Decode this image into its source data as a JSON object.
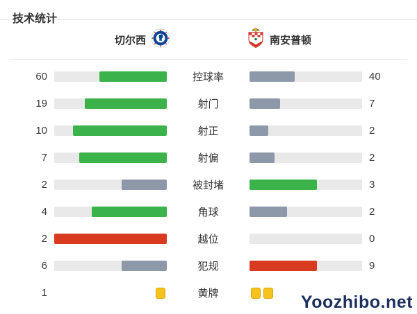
{
  "page": {
    "title": "技术统计",
    "watermark": "Yoozhibo.net"
  },
  "teams": {
    "home": {
      "name": "切尔西"
    },
    "away": {
      "name": "南安普顿"
    }
  },
  "colors": {
    "green": "#3cb24a",
    "slate": "#8d98a8",
    "red": "#d93b20",
    "track": "#e9e9e9",
    "yellow": "#f6c31d"
  },
  "chart_data": {
    "type": "bar",
    "title": "技术统计",
    "categories": [
      "控球率",
      "射门",
      "射正",
      "射偏",
      "被封堵",
      "角球",
      "越位",
      "犯规",
      "黄牌"
    ],
    "series": [
      {
        "name": "切尔西",
        "values": [
          60,
          19,
          10,
          7,
          2,
          4,
          2,
          6,
          1
        ]
      },
      {
        "name": "南安普顿",
        "values": [
          40,
          7,
          2,
          2,
          3,
          2,
          0,
          9,
          2
        ]
      }
    ],
    "layout": "mirrored horizontal bars, labels centered, fills proportional to value share"
  },
  "stats": [
    {
      "type": "bar",
      "label": "控球率",
      "home_value": "60",
      "away_value": "40",
      "home_pct": 60,
      "away_pct": 40,
      "home_color": "green",
      "away_color": "slate"
    },
    {
      "type": "bar",
      "label": "射门",
      "home_value": "19",
      "away_value": "7",
      "home_pct": 73.1,
      "away_pct": 26.9,
      "home_color": "green",
      "away_color": "slate"
    },
    {
      "type": "bar",
      "label": "射正",
      "home_value": "10",
      "away_value": "2",
      "home_pct": 83.3,
      "away_pct": 16.7,
      "home_color": "green",
      "away_color": "slate"
    },
    {
      "type": "bar",
      "label": "射偏",
      "home_value": "7",
      "away_value": "2",
      "home_pct": 77.8,
      "away_pct": 22.2,
      "home_color": "green",
      "away_color": "slate"
    },
    {
      "type": "bar",
      "label": "被封堵",
      "home_value": "2",
      "away_value": "3",
      "home_pct": 40,
      "away_pct": 60,
      "home_color": "slate",
      "away_color": "green"
    },
    {
      "type": "bar",
      "label": "角球",
      "home_value": "4",
      "away_value": "2",
      "home_pct": 66.7,
      "away_pct": 33.3,
      "home_color": "green",
      "away_color": "slate"
    },
    {
      "type": "bar",
      "label": "越位",
      "home_value": "2",
      "away_value": "0",
      "home_pct": 100,
      "away_pct": 0,
      "home_color": "red",
      "away_color": "slate"
    },
    {
      "type": "bar",
      "label": "犯规",
      "home_value": "6",
      "away_value": "9",
      "home_pct": 40,
      "away_pct": 60,
      "home_color": "slate",
      "away_color": "red"
    },
    {
      "type": "cards",
      "label": "黄牌",
      "home_value": "1",
      "away_value": "",
      "home_cards": 1,
      "away_cards": 2
    }
  ]
}
